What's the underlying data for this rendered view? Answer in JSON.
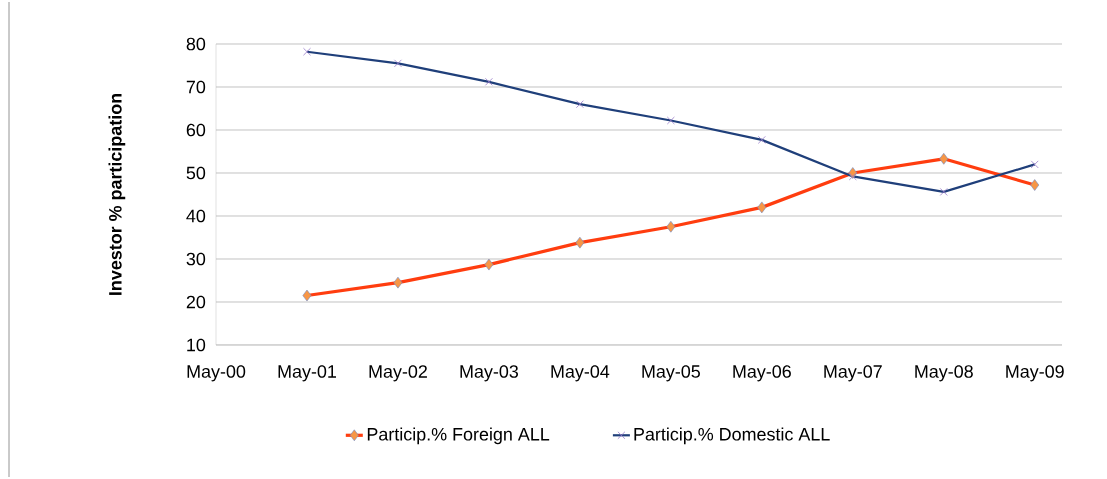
{
  "chart_data": {
    "type": "line",
    "ylabel": "Investor % participation",
    "categories": [
      "May-00",
      "May-01",
      "May-02",
      "May-03",
      "May-04",
      "May-05",
      "May-06",
      "May-07",
      "May-08",
      "May-09"
    ],
    "series": [
      {
        "name": "Particip.% Foreign ALL",
        "color": "#ff3d0f",
        "marker": "diamond",
        "values": [
          null,
          21.5,
          24.5,
          28.7,
          33.8,
          37.5,
          42,
          50,
          53.3,
          47.2
        ]
      },
      {
        "name": "Particip.% Domestic ALL",
        "color": "#1f3f7a",
        "marker": "cross",
        "values": [
          null,
          78.2,
          75.5,
          71.2,
          66,
          62.2,
          57.7,
          49.2,
          45.6,
          52
        ]
      }
    ],
    "ylim": [
      10,
      80
    ],
    "yticks": [
      10,
      20,
      30,
      40,
      50,
      60,
      70,
      80
    ],
    "grid": "y",
    "legend": "bottom"
  }
}
